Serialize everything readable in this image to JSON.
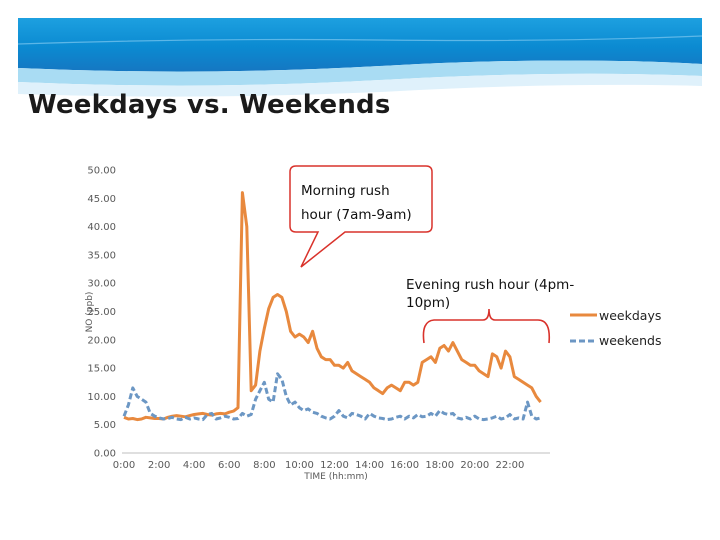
{
  "slide": {
    "title": "Weekdays vs. Weekends"
  },
  "chart_data": {
    "type": "line",
    "title": "",
    "xlabel": "TIME (hh:mm)",
    "ylabel": "NO (ppb)",
    "ylim": [
      0,
      50
    ],
    "xlim": [
      0,
      24
    ],
    "y_ticks": [
      "0.00",
      "5.00",
      "10.00",
      "15.00",
      "20.00",
      "25.00",
      "30.00",
      "35.00",
      "40.00",
      "45.00",
      "50.00"
    ],
    "x_ticks": [
      "0:00",
      "2:00",
      "4:00",
      "6:00",
      "8:00",
      "10:00",
      "12:00",
      "14:00",
      "16:00",
      "18:00",
      "20:00",
      "22:00"
    ],
    "grid": false,
    "legend_position": "right",
    "series": [
      {
        "name": "weekdays",
        "color": "#E8893E",
        "style": "solid",
        "x": [
          0,
          0.25,
          0.5,
          0.75,
          1,
          1.25,
          1.5,
          1.75,
          2,
          2.25,
          2.5,
          2.75,
          3,
          3.25,
          3.5,
          3.75,
          4,
          4.25,
          4.5,
          4.75,
          5,
          5.25,
          5.5,
          5.75,
          6,
          6.25,
          6.5,
          6.75,
          7,
          7.25,
          7.5,
          7.75,
          8,
          8.25,
          8.5,
          8.75,
          9,
          9.25,
          9.5,
          9.75,
          10,
          10.25,
          10.5,
          10.75,
          11,
          11.25,
          11.5,
          11.75,
          12,
          12.25,
          12.5,
          12.75,
          13,
          13.25,
          13.5,
          13.75,
          14,
          14.25,
          14.5,
          14.75,
          15,
          15.25,
          15.5,
          15.75,
          16,
          16.25,
          16.5,
          16.75,
          17,
          17.25,
          17.5,
          17.75,
          18,
          18.25,
          18.5,
          18.75,
          19,
          19.25,
          19.5,
          19.75,
          20,
          20.25,
          20.5,
          20.75,
          21,
          21.25,
          21.5,
          21.75,
          22,
          22.25,
          22.5,
          22.75,
          23,
          23.25,
          23.5,
          23.75
        ],
        "values": [
          6.3,
          6.0,
          6.1,
          5.9,
          6.0,
          6.3,
          6.2,
          6.1,
          6.1,
          6.0,
          6.3,
          6.5,
          6.6,
          6.5,
          6.4,
          6.6,
          6.8,
          6.9,
          7.0,
          6.8,
          6.7,
          6.9,
          7.0,
          6.9,
          7.2,
          7.4,
          8.0,
          46.0,
          40.0,
          11.0,
          12.0,
          18.0,
          22.0,
          25.5,
          27.5,
          28.0,
          27.5,
          25.0,
          21.5,
          20.5,
          21.0,
          20.5,
          19.5,
          21.5,
          18.5,
          17.0,
          16.5,
          16.5,
          15.5,
          15.5,
          15.0,
          16.0,
          14.5,
          14.0,
          13.5,
          13.0,
          12.5,
          11.5,
          11.0,
          10.5,
          11.5,
          12.0,
          11.5,
          11.0,
          12.5,
          12.5,
          12.0,
          12.5,
          16.0,
          16.5,
          17.0,
          16.0,
          18.5,
          19.0,
          18.0,
          19.5,
          18.0,
          16.5,
          16.0,
          15.5,
          15.5,
          14.5,
          14.0,
          13.5,
          17.5,
          17.0,
          15.0,
          18.0,
          17.0,
          13.5,
          13.0,
          12.5,
          12.0,
          11.5,
          10.0,
          9.0
        ]
      },
      {
        "name": "weekends",
        "color": "#6C97C4",
        "style": "dashed",
        "x": [
          0,
          0.25,
          0.5,
          0.75,
          1,
          1.25,
          1.5,
          1.75,
          2,
          2.25,
          2.5,
          2.75,
          3,
          3.25,
          3.5,
          3.75,
          4,
          4.25,
          4.5,
          4.75,
          5,
          5.25,
          5.5,
          5.75,
          6,
          6.25,
          6.5,
          6.75,
          7,
          7.25,
          7.5,
          7.75,
          8,
          8.25,
          8.5,
          8.75,
          9,
          9.25,
          9.5,
          9.75,
          10,
          10.25,
          10.5,
          10.75,
          11,
          11.25,
          11.5,
          11.75,
          12,
          12.25,
          12.5,
          12.75,
          13,
          13.25,
          13.5,
          13.75,
          14,
          14.25,
          14.5,
          14.75,
          15,
          15.25,
          15.5,
          15.75,
          16,
          16.25,
          16.5,
          16.75,
          17,
          17.25,
          17.5,
          17.75,
          18,
          18.25,
          18.5,
          18.75,
          19,
          19.25,
          19.5,
          19.75,
          20,
          20.25,
          20.5,
          20.75,
          21,
          21.25,
          21.5,
          21.75,
          22,
          22.25,
          22.5,
          22.75,
          23,
          23.25,
          23.5,
          23.75
        ],
        "values": [
          6.5,
          8.5,
          11.5,
          10.0,
          9.5,
          9.0,
          7.0,
          6.5,
          6.2,
          6.0,
          6.1,
          6.3,
          6.0,
          5.9,
          6.3,
          6.0,
          6.2,
          6.0,
          5.9,
          6.8,
          7.0,
          6.0,
          6.2,
          6.5,
          6.3,
          6.0,
          6.1,
          7.0,
          6.5,
          6.8,
          9.5,
          11.0,
          12.5,
          9.5,
          9.0,
          14.0,
          13.0,
          10.0,
          8.5,
          9.0,
          8.0,
          7.5,
          7.8,
          7.2,
          7.0,
          6.5,
          6.2,
          6.0,
          6.5,
          7.5,
          6.5,
          6.2,
          7.0,
          6.8,
          6.5,
          6.0,
          7.0,
          6.5,
          6.2,
          6.1,
          5.9,
          6.0,
          6.3,
          6.5,
          6.0,
          6.5,
          6.2,
          6.8,
          6.4,
          6.5,
          7.0,
          6.5,
          7.5,
          7.0,
          6.8,
          7.0,
          6.2,
          6.0,
          6.3,
          6.0,
          6.5,
          6.0,
          5.9,
          6.0,
          6.2,
          6.5,
          6.0,
          6.2,
          6.8,
          6.0,
          6.2,
          6.0,
          9.0,
          6.5,
          6.0,
          6.2
        ]
      }
    ],
    "annotations": {
      "morning_callout": "Morning rush hour (7am-9am)",
      "evening_label": "Evening rush hour (4pm-10pm)"
    }
  }
}
